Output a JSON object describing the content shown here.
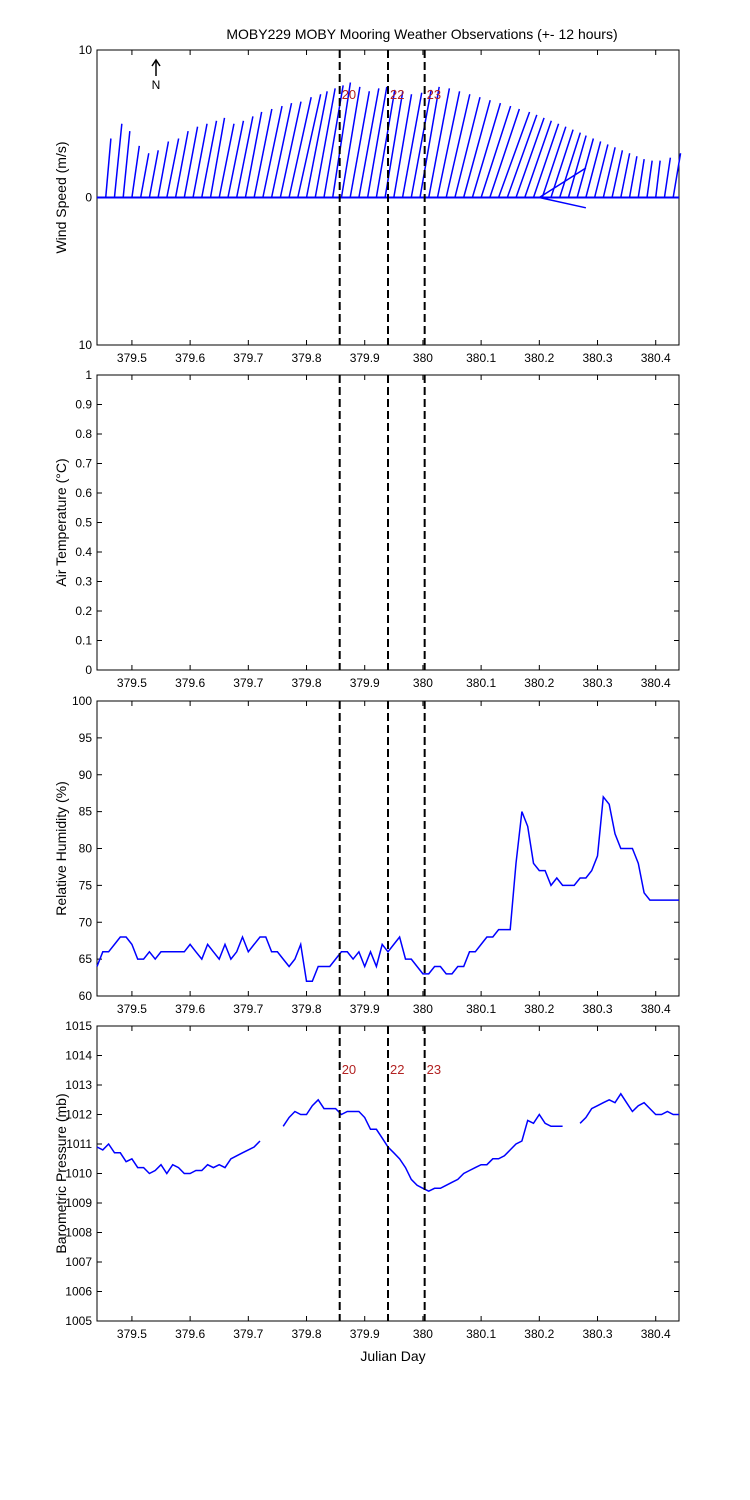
{
  "title": "MOBY229 MOBY Mooring Weather Observations (+- 12 hours)",
  "xlabel": "Julian Day",
  "north_label": "N",
  "colors": {
    "series": "#0000ff",
    "marker_text": "#b22222",
    "axes": "#000000"
  },
  "chart_data": [
    {
      "type": "line",
      "subtype": "wind-vector",
      "ylabel": "Wind Speed (m/s)",
      "xlim": [
        379.44,
        380.44
      ],
      "ylim": [
        -10,
        10
      ],
      "yticks": [
        "10",
        "0",
        "10"
      ],
      "xticks": [
        "379.5",
        "379.6",
        "379.7",
        "379.8",
        "379.9",
        "380",
        "380.1",
        "380.2",
        "380.3",
        "380.4"
      ],
      "markers": [
        {
          "x": 379.857,
          "label": "20"
        },
        {
          "x": 379.94,
          "label": "22"
        },
        {
          "x": 380.003,
          "label": "23"
        }
      ],
      "series": [
        {
          "x": [
            379.455,
            379.47,
            379.485,
            379.5,
            379.515,
            379.53,
            379.545,
            379.56,
            379.575,
            379.59,
            379.605,
            379.62,
            379.635,
            379.65,
            379.665,
            379.68,
            379.695,
            379.71,
            379.725,
            379.74,
            379.755,
            379.77,
            379.785,
            379.8,
            379.815,
            379.83,
            379.845,
            379.86,
            379.875,
            379.89,
            379.905,
            379.92,
            379.935,
            379.95,
            379.965,
            379.98,
            379.995,
            380.01,
            380.025,
            380.04,
            380.055,
            380.07,
            380.085,
            380.1,
            380.115,
            380.13,
            380.145,
            380.16,
            380.175,
            380.19,
            380.205,
            380.22,
            380.235,
            380.25,
            380.265,
            380.28,
            380.295,
            380.31,
            380.325,
            380.34,
            380.355,
            380.37,
            380.385,
            380.4,
            380.415,
            380.43
          ],
          "u": [
            0.35,
            0.5,
            0.45,
            0.5,
            0.55,
            0.6,
            0.7,
            0.8,
            0.85,
            0.9,
            0.95,
            1.0,
            0.95,
            1.0,
            1.05,
            1.1,
            1.1,
            1.2,
            1.3,
            1.35,
            1.4,
            1.5,
            1.55,
            1.4,
            1.35,
            1.3,
            1.2,
            1.25,
            1.3,
            1.35,
            1.3,
            1.25,
            1.2,
            1.2,
            1.3,
            1.35,
            1.3,
            1.4,
            1.5,
            1.6,
            1.7,
            1.8,
            1.9,
            2.0,
            2.0,
            2.1,
            2.0,
            1.9,
            1.8,
            1.7,
            1.6,
            1.5,
            1.4,
            1.2,
            1.1,
            1.0,
            0.9,
            0.8,
            0.7,
            0.6,
            0.5,
            0.4,
            0.35,
            0.3,
            0.4,
            0.5
          ],
          "v": [
            4.0,
            5.0,
            4.5,
            3.5,
            3.0,
            3.2,
            3.8,
            4.0,
            4.5,
            4.8,
            5.0,
            5.2,
            5.4,
            5.0,
            5.2,
            5.5,
            5.8,
            6.0,
            6.2,
            6.4,
            6.5,
            6.8,
            7.0,
            7.2,
            7.4,
            7.6,
            7.8,
            7.5,
            7.2,
            7.4,
            7.5,
            7.3,
            7.2,
            7.0,
            7.1,
            7.3,
            7.5,
            7.4,
            7.2,
            7.0,
            6.8,
            6.6,
            6.4,
            6.2,
            6.0,
            5.8,
            5.6,
            5.4,
            5.2,
            5.0,
            4.8,
            4.6,
            4.4,
            4.2,
            4.0,
            3.8,
            3.6,
            3.4,
            3.2,
            3.0,
            2.8,
            2.6,
            2.5,
            2.5,
            2.7,
            3.0
          ]
        }
      ]
    },
    {
      "type": "line",
      "ylabel": "Air Temperature (°C)",
      "xlim": [
        379.44,
        380.44
      ],
      "ylim": [
        0,
        1
      ],
      "yticks": [
        "1",
        "0.9",
        "0.8",
        "0.7",
        "0.6",
        "0.5",
        "0.4",
        "0.3",
        "0.2",
        "0.1",
        "0"
      ],
      "xticks": [
        "379.5",
        "379.6",
        "379.7",
        "379.8",
        "379.9",
        "380",
        "380.1",
        "380.2",
        "380.3",
        "380.4"
      ],
      "markers": [
        {
          "x": 379.857,
          "label": ""
        },
        {
          "x": 379.94,
          "label": ""
        },
        {
          "x": 380.003,
          "label": ""
        }
      ],
      "series": []
    },
    {
      "type": "line",
      "ylabel": "Relative Humidity (%)",
      "xlim": [
        379.44,
        380.44
      ],
      "ylim": [
        60,
        100
      ],
      "yticks": [
        "100",
        "95",
        "90",
        "85",
        "80",
        "75",
        "70",
        "65",
        "60"
      ],
      "xticks": [
        "379.5",
        "379.6",
        "379.7",
        "379.8",
        "379.9",
        "380",
        "380.1",
        "380.2",
        "380.3",
        "380.4"
      ],
      "markers": [
        {
          "x": 379.857,
          "label": ""
        },
        {
          "x": 379.94,
          "label": ""
        },
        {
          "x": 380.003,
          "label": ""
        }
      ],
      "series": [
        {
          "x": [
            379.44,
            379.45,
            379.46,
            379.47,
            379.48,
            379.49,
            379.5,
            379.51,
            379.52,
            379.53,
            379.54,
            379.55,
            379.56,
            379.57,
            379.58,
            379.59,
            379.6,
            379.61,
            379.62,
            379.63,
            379.64,
            379.65,
            379.66,
            379.67,
            379.68,
            379.69,
            379.7,
            379.71,
            379.72,
            379.73,
            379.74,
            379.75,
            379.76,
            379.77,
            379.78,
            379.79,
            379.8,
            379.81,
            379.82,
            379.83,
            379.84,
            379.85,
            379.86,
            379.87,
            379.88,
            379.89,
            379.9,
            379.91,
            379.92,
            379.93,
            379.94,
            379.95,
            379.96,
            379.97,
            379.98,
            379.99,
            380.0,
            380.01,
            380.02,
            380.03,
            380.04,
            380.05,
            380.06,
            380.07,
            380.08,
            380.09,
            380.1,
            380.11,
            380.12,
            380.13,
            380.14,
            380.15,
            380.16,
            380.17,
            380.18,
            380.19,
            380.2,
            380.21,
            380.22,
            380.23,
            380.24,
            380.25,
            380.26,
            380.27,
            380.28,
            380.29,
            380.3,
            380.31,
            380.32,
            380.33,
            380.34,
            380.35,
            380.36,
            380.37,
            380.38,
            380.39,
            380.4,
            380.41,
            380.42,
            380.43,
            380.44
          ],
          "y": [
            64,
            66,
            66,
            67,
            68,
            68,
            67,
            65,
            65,
            66,
            65,
            66,
            66,
            66,
            66,
            66,
            67,
            66,
            65,
            67,
            66,
            65,
            67,
            65,
            66,
            68,
            66,
            67,
            68,
            68,
            66,
            66,
            65,
            64,
            65,
            67,
            62,
            62,
            64,
            64,
            64,
            65,
            66,
            66,
            65,
            66,
            64,
            66,
            64,
            67,
            66,
            67,
            68,
            65,
            65,
            64,
            63,
            63,
            64,
            64,
            63,
            63,
            64,
            64,
            66,
            66,
            67,
            68,
            68,
            69,
            69,
            69,
            78,
            85,
            83,
            78,
            77,
            77,
            75,
            76,
            75,
            75,
            75,
            76,
            76,
            77,
            79,
            87,
            86,
            82,
            80,
            80,
            80,
            78,
            74,
            73,
            73,
            73,
            73,
            73,
            73
          ]
        }
      ]
    },
    {
      "type": "line",
      "ylabel": "Barometric Pressure (mb)",
      "xlim": [
        379.44,
        380.44
      ],
      "ylim": [
        1005,
        1015
      ],
      "yticks": [
        "1015",
        "1014",
        "1013",
        "1012",
        "1011",
        "1010",
        "1009",
        "1008",
        "1007",
        "1006",
        "1005"
      ],
      "xticks": [
        "379.5",
        "379.6",
        "379.7",
        "379.8",
        "379.9",
        "380",
        "380.1",
        "380.2",
        "380.3",
        "380.4"
      ],
      "markers": [
        {
          "x": 379.857,
          "label": "20"
        },
        {
          "x": 379.94,
          "label": "22"
        },
        {
          "x": 380.003,
          "label": "23"
        }
      ],
      "series": [
        {
          "x": [
            379.44,
            379.45,
            379.46,
            379.47,
            379.48,
            379.49,
            379.5,
            379.51,
            379.52,
            379.53,
            379.54,
            379.55,
            379.56,
            379.57,
            379.58,
            379.59,
            379.6,
            379.61,
            379.62,
            379.63,
            379.64,
            379.65,
            379.66,
            379.67,
            379.68,
            379.69,
            379.7,
            379.71,
            379.72
          ],
          "y": [
            1010.9,
            1010.8,
            1011.0,
            1010.7,
            1010.7,
            1010.4,
            1010.5,
            1010.2,
            1010.2,
            1010.0,
            1010.1,
            1010.3,
            1010.0,
            1010.3,
            1010.2,
            1010.0,
            1010.0,
            1010.1,
            1010.1,
            1010.3,
            1010.2,
            1010.3,
            1010.2,
            1010.5,
            1010.6,
            1010.7,
            1010.8,
            1010.9,
            1011.1
          ]
        },
        {
          "x": [
            379.76,
            379.77,
            379.78,
            379.79,
            379.8,
            379.81,
            379.82,
            379.83,
            379.84,
            379.85,
            379.86,
            379.87,
            379.88,
            379.89,
            379.9,
            379.91,
            379.92,
            379.93,
            379.94,
            379.95,
            379.96,
            379.97,
            379.98,
            379.99,
            380.0,
            380.01,
            380.02,
            380.03,
            380.04,
            380.05,
            380.06,
            380.07,
            380.08,
            380.09,
            380.1,
            380.11,
            380.12,
            380.13,
            380.14,
            380.15,
            380.16,
            380.17,
            380.18,
            380.19,
            380.2,
            380.21,
            380.22,
            380.23,
            380.24
          ],
          "y": [
            1011.6,
            1011.9,
            1012.1,
            1012.0,
            1012.0,
            1012.3,
            1012.5,
            1012.2,
            1012.2,
            1012.2,
            1012.0,
            1012.1,
            1012.1,
            1012.1,
            1011.9,
            1011.5,
            1011.5,
            1011.2,
            1010.9,
            1010.7,
            1010.5,
            1010.2,
            1009.8,
            1009.6,
            1009.5,
            1009.4,
            1009.5,
            1009.5,
            1009.6,
            1009.7,
            1009.8,
            1010.0,
            1010.1,
            1010.2,
            1010.3,
            1010.3,
            1010.5,
            1010.5,
            1010.6,
            1010.8,
            1011.0,
            1011.1,
            1011.8,
            1011.7,
            1012.0,
            1011.7,
            1011.6,
            1011.6,
            1011.6
          ]
        },
        {
          "x": [
            380.27,
            380.28,
            380.29,
            380.3,
            380.31,
            380.32,
            380.33,
            380.34,
            380.35,
            380.36,
            380.37,
            380.38,
            380.39,
            380.4,
            380.41,
            380.42,
            380.43,
            380.44
          ],
          "y": [
            1011.7,
            1011.9,
            1012.2,
            1012.3,
            1012.4,
            1012.5,
            1012.4,
            1012.7,
            1012.4,
            1012.1,
            1012.3,
            1012.4,
            1012.2,
            1012.0,
            1012.0,
            1012.1,
            1012.0,
            1012.0
          ]
        }
      ]
    }
  ]
}
